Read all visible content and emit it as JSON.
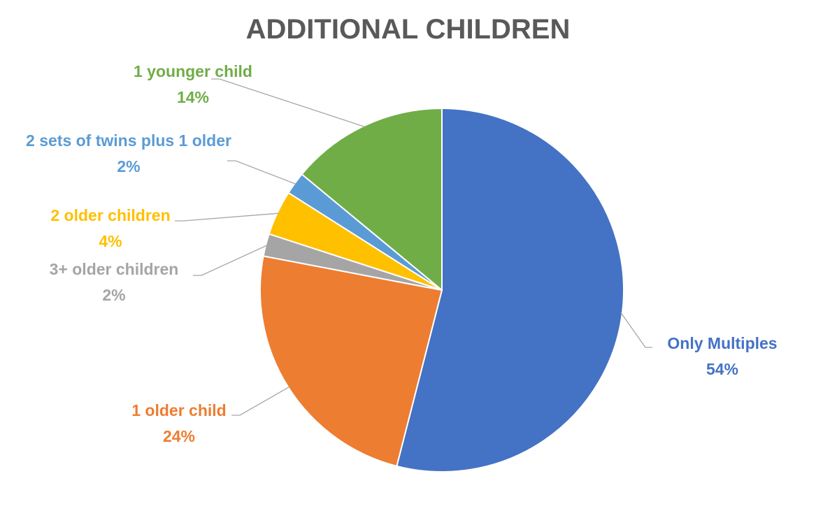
{
  "chart_data": {
    "type": "pie",
    "title": "ADDITIONAL CHILDREN",
    "slices": [
      {
        "label": "Only Multiples",
        "value": 54,
        "value_label": "54%",
        "color": "#4472C4"
      },
      {
        "label": "1 older child",
        "value": 24,
        "value_label": "24%",
        "color": "#ED7D31"
      },
      {
        "label": "3+ older children",
        "value": 2,
        "value_label": "2%",
        "color": "#A5A5A5"
      },
      {
        "label": "2 older children",
        "value": 4,
        "value_label": "4%",
        "color": "#FFC000"
      },
      {
        "label": "2 sets of twins plus 1 older",
        "value": 2,
        "value_label": "2%",
        "color": "#5B9BD5"
      },
      {
        "label": "1 younger child",
        "value": 14,
        "value_label": "14%",
        "color": "#70AD47"
      }
    ],
    "legend": "none",
    "data_labels": "outside with leader lines"
  }
}
